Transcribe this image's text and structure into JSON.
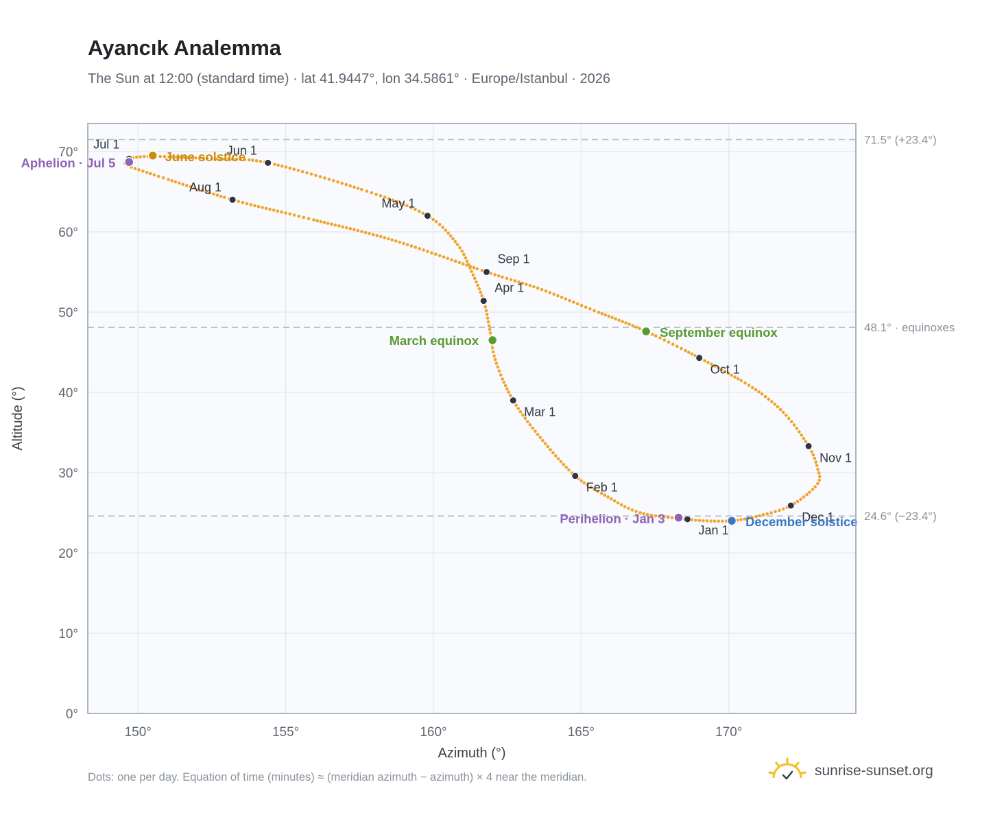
{
  "header": {
    "title": "Ayancık Analemma",
    "subtitle": "The Sun at 12:00 (standard time) · lat 41.9447°, lon 34.5861° · Europe/Istanbul · 2026"
  },
  "footer": {
    "note": "Dots: one per day. Equation of time (minutes) ≈ (meridian azimuth − azimuth) × 4 near the meridian.",
    "brand": "sunrise-sunset.org",
    "brand_icon": "sun-check-icon"
  },
  "colors": {
    "curve": "#f0a429",
    "month_dot": "#2f3540",
    "june_solstice": "#d08c12",
    "equinox": "#5a9a32",
    "december_solstice": "#3a78c0",
    "apsis": "#8e63b8",
    "reference_line": "#b9bfc7",
    "plot_background": "#f8fafd",
    "grid": "#e4e8ee",
    "frame": "#9aa5b4"
  },
  "chart_data": {
    "type": "scatter",
    "title": "Ayancık Analemma",
    "xlabel": "Azimuth (°)",
    "ylabel": "Altitude (°)",
    "xlim": [
      148.3,
      174.3
    ],
    "ylim": [
      0,
      73.5
    ],
    "x_ticks": [
      150,
      155,
      160,
      165,
      170
    ],
    "x_tick_labels": [
      "150°",
      "155°",
      "160°",
      "165°",
      "170°"
    ],
    "y_ticks": [
      0,
      10,
      20,
      30,
      40,
      50,
      60,
      70
    ],
    "y_tick_labels": [
      "0°",
      "10°",
      "20°",
      "30°",
      "40°",
      "50°",
      "60°",
      "70°"
    ],
    "grid": true,
    "month_points": [
      {
        "label": "Jan 1",
        "x": 168.6,
        "y": 24.2
      },
      {
        "label": "Feb 1",
        "x": 164.8,
        "y": 29.6
      },
      {
        "label": "Mar 1",
        "x": 162.7,
        "y": 39.0
      },
      {
        "label": "Apr 1",
        "x": 161.7,
        "y": 51.4
      },
      {
        "label": "May 1",
        "x": 159.8,
        "y": 62.0
      },
      {
        "label": "Jun 1",
        "x": 154.4,
        "y": 68.6
      },
      {
        "label": "Jul 1",
        "x": 149.7,
        "y": 69.1
      },
      {
        "label": "Aug 1",
        "x": 153.2,
        "y": 64.0
      },
      {
        "label": "Sep 1",
        "x": 161.8,
        "y": 55.0
      },
      {
        "label": "Oct 1",
        "x": 169.0,
        "y": 44.3
      },
      {
        "label": "Nov 1",
        "x": 172.7,
        "y": 33.3
      },
      {
        "label": "Dec 1",
        "x": 172.1,
        "y": 25.9
      }
    ],
    "events": [
      {
        "label": "June solstice",
        "x": 150.5,
        "y": 69.5,
        "color": "#d08c12"
      },
      {
        "label": "March equinox",
        "x": 162.0,
        "y": 46.5,
        "color": "#5a9a32"
      },
      {
        "label": "September equinox",
        "x": 167.2,
        "y": 47.6,
        "color": "#5a9a32"
      },
      {
        "label": "December solstice",
        "x": 170.1,
        "y": 24.0,
        "color": "#3a78c0"
      },
      {
        "label": "Aphelion · Jul 5",
        "x": 149.7,
        "y": 68.7,
        "color": "#8e63b8"
      },
      {
        "label": "Perihelion · Jan 3",
        "x": 168.3,
        "y": 24.4,
        "color": "#8e63b8"
      }
    ],
    "reference_lines": [
      {
        "y": 71.5,
        "label": "71.5° (+23.4°)"
      },
      {
        "y": 48.1,
        "label": "48.1° · equinoxes"
      },
      {
        "y": 24.6,
        "label": "24.6° (−23.4°)"
      }
    ],
    "curve_path": [
      [
        168.6,
        24.2
      ],
      [
        167.0,
        25.0
      ],
      [
        165.8,
        27.2
      ],
      [
        164.8,
        29.6
      ],
      [
        163.7,
        34.0
      ],
      [
        162.7,
        39.0
      ],
      [
        162.1,
        44.0
      ],
      [
        161.9,
        48.0
      ],
      [
        161.7,
        51.4
      ],
      [
        161.3,
        55.0
      ],
      [
        160.8,
        58.5
      ],
      [
        159.8,
        62.0
      ],
      [
        157.8,
        65.0
      ],
      [
        154.4,
        68.6
      ],
      [
        152.5,
        69.1
      ],
      [
        150.5,
        69.4
      ],
      [
        149.7,
        69.1
      ],
      [
        149.6,
        68.4
      ],
      [
        150.3,
        67.4
      ],
      [
        153.2,
        64.0
      ],
      [
        155.5,
        61.9
      ],
      [
        158.6,
        59.0
      ],
      [
        161.8,
        55.0
      ],
      [
        163.6,
        52.9
      ],
      [
        165.3,
        50.4
      ],
      [
        167.2,
        47.6
      ],
      [
        169.0,
        44.3
      ],
      [
        170.8,
        40.6
      ],
      [
        171.9,
        37.3
      ],
      [
        172.7,
        33.3
      ],
      [
        173.0,
        30.6
      ],
      [
        173.0,
        28.6
      ],
      [
        172.1,
        25.9
      ],
      [
        171.0,
        24.6
      ],
      [
        170.1,
        24.0
      ],
      [
        169.2,
        24.0
      ],
      [
        168.6,
        24.2
      ]
    ]
  }
}
